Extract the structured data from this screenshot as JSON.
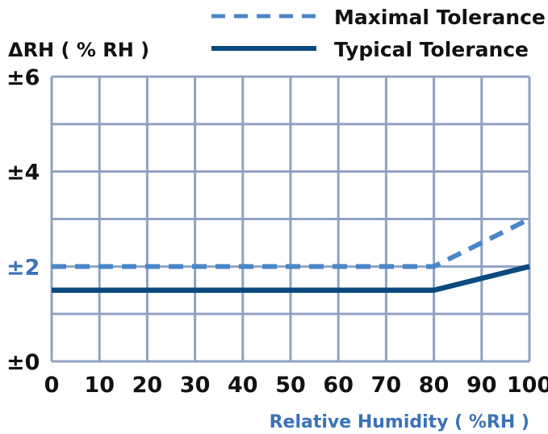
{
  "chart_data": {
    "type": "line",
    "ylabel": "ΔRH ( % RH )",
    "xlabel": "Relative Humidity ( %RH )",
    "xlim": [
      0,
      100
    ],
    "ylim": [
      0,
      6
    ],
    "x_ticks": [
      0,
      10,
      20,
      30,
      40,
      50,
      60,
      70,
      80,
      90,
      100
    ],
    "x_tick_labels": [
      "0",
      "10",
      "20",
      "30",
      "40",
      "50",
      "60",
      "70",
      "80",
      "90",
      "100"
    ],
    "y_ticks": [
      0,
      2,
      4,
      6
    ],
    "y_tick_labels": [
      "±0",
      "±2",
      "±4",
      "±6"
    ],
    "highlighted_y_tick": 2,
    "grid": true,
    "legend_position": "top-right",
    "series": [
      {
        "name": "Maximal Tolerance",
        "style": "dashed",
        "color": "#4a86c8",
        "points": [
          [
            0,
            2
          ],
          [
            80,
            2
          ],
          [
            100,
            3
          ]
        ]
      },
      {
        "name": "Typical Tolerance",
        "style": "solid",
        "color": "#0b4a7f",
        "points": [
          [
            0,
            1.5
          ],
          [
            80,
            1.5
          ],
          [
            100,
            2
          ]
        ]
      }
    ],
    "colors": {
      "grid": "#8fa2c2",
      "text": "#111111",
      "accent_text": "#3a72b8"
    }
  }
}
